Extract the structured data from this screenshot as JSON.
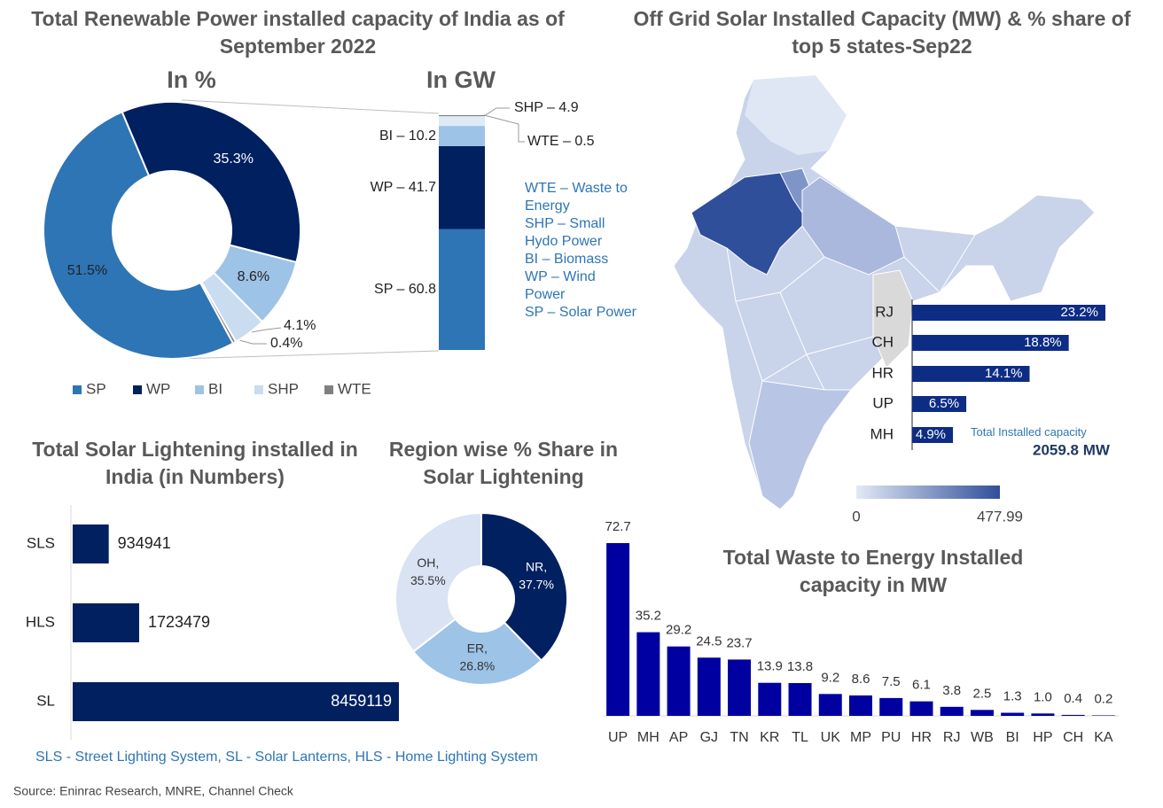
{
  "chart_data": [
    {
      "type": "donut",
      "title": "Total Renewable Power installed capacity of India as of September 2022",
      "subtitle": "In %",
      "categories": [
        "SP",
        "WP",
        "BI",
        "SHP",
        "WTE"
      ],
      "values": [
        51.5,
        35.3,
        8.6,
        4.1,
        0.4
      ],
      "value_labels": [
        "51.5%",
        "35.3%",
        "8.6%",
        "4.1%",
        "0.4%"
      ],
      "colors": [
        "#2e75b6",
        "#002060",
        "#9dc3e6",
        "#c9dcf0",
        "#7f7f7f"
      ],
      "legend": "bottom"
    },
    {
      "type": "stacked-bar",
      "title": "In GW",
      "values": [
        60.8,
        41.7,
        10.2,
        4.9,
        0.5
      ],
      "value_labels": [
        "SP – 60.8",
        "WP – 41.7",
        "BI – 10.2",
        "SHP – 4.9",
        "WTE – 0.5"
      ],
      "colors": [
        "#2e75b6",
        "#002060",
        "#9dc3e6",
        "#deebf7",
        "#7f7f7f"
      ],
      "notes": [
        "WTE – Waste to Energy",
        "SHP – Small Hydo Power",
        "BI – Biomass",
        "WP – Wind Power",
        "SP – Solar Power"
      ]
    },
    {
      "type": "hbar",
      "title": "Off Grid Solar Installed Capacity  (MW) & % share of top 5 states-Sep22",
      "categories": [
        "RJ",
        "CH",
        "HR",
        "UP",
        "MH"
      ],
      "values": [
        23.2,
        18.8,
        14.1,
        6.5,
        4.9
      ],
      "value_labels": [
        "23.2%",
        "18.8%",
        "14.1%",
        "6.5%",
        "4.9%"
      ],
      "color": "#0d2c84",
      "annotation": "Total Installed capacity",
      "total": "2059.8 MW",
      "clim": [
        0,
        477.99
      ]
    },
    {
      "type": "hbar",
      "title": "Total Solar Lightening installed in India (in Numbers)",
      "categories": [
        "SLS",
        "HLS",
        "SL"
      ],
      "values": [
        934941,
        1723479,
        8459119
      ],
      "color": "#002060",
      "note": "SLS - Street Lighting System,   SL - Solar Lanterns,  HLS - Home Lighting System"
    },
    {
      "type": "donut",
      "title": "Region wise % Share in Solar Lightening",
      "categories": [
        "NR,",
        "ER,",
        "OH,"
      ],
      "values": [
        37.7,
        26.8,
        35.5
      ],
      "value_labels": [
        "37.7%",
        "26.8%",
        "35.5%"
      ],
      "colors": [
        "#002060",
        "#9dc3e6",
        "#dae3f3"
      ]
    },
    {
      "type": "bar",
      "title": "Total Waste to Energy Installed capacity in MW",
      "categories": [
        "UP",
        "MH",
        "AP",
        "GJ",
        "TN",
        "KR",
        "TL",
        "UK",
        "MP",
        "PU",
        "HR",
        "RJ",
        "WB",
        "BI",
        "HP",
        "CH",
        "KA"
      ],
      "values": [
        72.7,
        35.2,
        29.2,
        24.5,
        23.7,
        13.9,
        13.8,
        9.2,
        8.6,
        7.5,
        6.1,
        3.8,
        2.5,
        1.3,
        1.0,
        0.4,
        0.2
      ],
      "value_labels": [
        "72.7",
        "35.2",
        "29.2",
        "24.5",
        "23.7",
        "13.9",
        "13.8",
        "9.2",
        "8.6",
        "7.5",
        "6.1",
        "3.8",
        "2.5",
        "1.3",
        "1.0",
        "0.4",
        "0.2"
      ],
      "color": "#0000a0"
    }
  ],
  "source": "Source: Eninrac Research, MNRE, Channel Check"
}
